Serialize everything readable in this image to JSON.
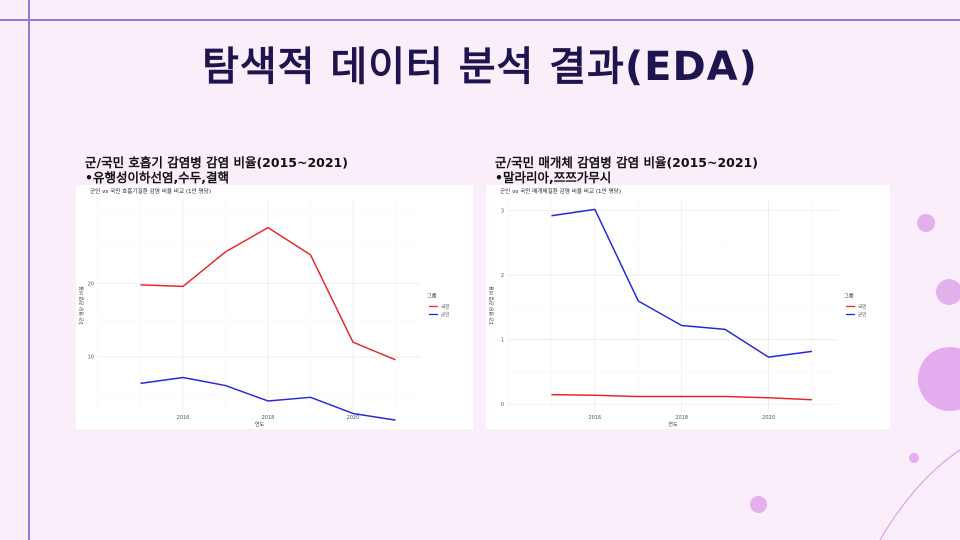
{
  "page_title": "탐색적 데이터 분석 결과(EDA)",
  "panels": [
    {
      "heading": "군/국민 호흡기 감염병 감염 비율(2015~2021)",
      "subheading": "•유행성이하선염,수두,결핵"
    },
    {
      "heading": "군/국민 매개체 감염병 감염 비율(2015~2021)",
      "subheading": "•말라리아,쯔쯔가무시"
    }
  ],
  "chart_data": [
    {
      "type": "line",
      "title": "군인 vs 국민 호흡기질환 감염 비율 비교 (1만 명당)",
      "xlabel": "연도",
      "ylabel": "1만 명당 감염 비율",
      "x": [
        2015,
        2016,
        2017,
        2018,
        2019,
        2020,
        2021
      ],
      "xticks": [
        2016,
        2018,
        2020
      ],
      "yticks": [
        10,
        20
      ],
      "xlim": [
        2014.0,
        2021.6
      ],
      "ylim": [
        2.5,
        31.5
      ],
      "grid": true,
      "legend_title": "그룹",
      "legend_position": "right",
      "series": [
        {
          "name": "국민",
          "color": "#e8262a",
          "values": [
            19.8,
            19.6,
            24.3,
            27.6,
            23.9,
            12.0,
            9.6
          ]
        },
        {
          "name": "군인",
          "color": "#2626e0",
          "values": [
            6.4,
            7.2,
            6.1,
            4.0,
            4.5,
            2.3,
            1.4
          ]
        }
      ]
    },
    {
      "type": "line",
      "title": "군인 vs 국민 매개체질환 감염 비율 비교 (1만 명당)",
      "xlabel": "연도",
      "ylabel": "1만 명당 감염 비율",
      "x": [
        2015,
        2016,
        2017,
        2018,
        2019,
        2020,
        2021
      ],
      "xticks": [
        2016,
        2018,
        2020
      ],
      "yticks": [
        0,
        1,
        2,
        3
      ],
      "xlim": [
        2014.0,
        2021.6
      ],
      "ylim": [
        -0.12,
        3.18
      ],
      "grid": true,
      "legend_title": "그룹",
      "legend_position": "right",
      "series": [
        {
          "name": "국민",
          "color": "#e8262a",
          "values": [
            0.15,
            0.14,
            0.12,
            0.12,
            0.12,
            0.1,
            0.07
          ]
        },
        {
          "name": "군인",
          "color": "#2626e0",
          "values": [
            2.92,
            3.02,
            1.6,
            1.22,
            1.16,
            0.73,
            0.82
          ]
        }
      ]
    }
  ],
  "colors": {
    "background": "#fbeefb",
    "accent_line": "#8a7fd6",
    "title": "#1e1450",
    "decor": "#e6b3ee"
  }
}
